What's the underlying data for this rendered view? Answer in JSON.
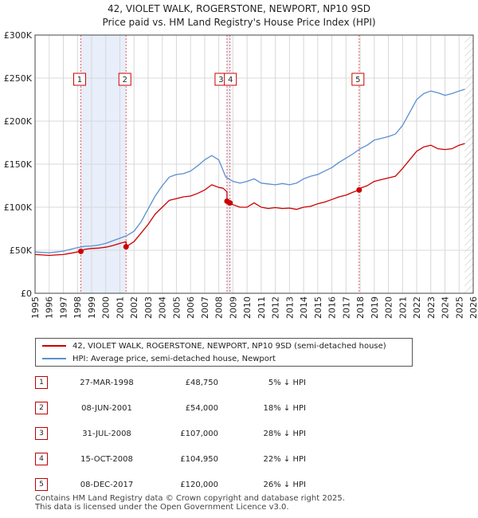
{
  "chart_data": {
    "type": "line",
    "title": "42, VIOLET WALK, ROGERSTONE, NEWPORT, NP10 9SD",
    "subtitle": "Price paid vs. HM Land Registry's House Price Index (HPI)",
    "xlim": [
      1995,
      2026
    ],
    "ylim": [
      0,
      300000
    ],
    "x_ticks": [
      1995,
      1996,
      1997,
      1998,
      1999,
      2000,
      2001,
      2002,
      2003,
      2004,
      2005,
      2006,
      2007,
      2008,
      2009,
      2010,
      2011,
      2012,
      2013,
      2014,
      2015,
      2016,
      2017,
      2018,
      2019,
      2020,
      2021,
      2022,
      2023,
      2024,
      2025,
      2026
    ],
    "y_ticks": [
      {
        "value": 0,
        "label": "£0"
      },
      {
        "value": 50000,
        "label": "£50K"
      },
      {
        "value": 100000,
        "label": "£100K"
      },
      {
        "value": 150000,
        "label": "£150K"
      },
      {
        "value": 200000,
        "label": "£200K"
      },
      {
        "value": 250000,
        "label": "£250K"
      },
      {
        "value": 300000,
        "label": "£300K"
      }
    ],
    "grid": true,
    "series": [
      {
        "name": "42, VIOLET WALK, ROGERSTONE, NEWPORT, NP10 9SD (semi-detached house)",
        "color": "#cc0000",
        "x": [
          1995.0,
          1995.5,
          1996.0,
          1996.5,
          1997.0,
          1997.5,
          1998.0,
          1998.24,
          1998.5,
          1999.0,
          1999.5,
          2000.0,
          2000.5,
          2001.0,
          2001.44,
          2001.44,
          2002.0,
          2002.5,
          2003.0,
          2003.5,
          2004.0,
          2004.5,
          2005.0,
          2005.5,
          2006.0,
          2006.5,
          2007.0,
          2007.5,
          2008.0,
          2008.3,
          2008.58,
          2008.58,
          2008.79,
          2008.79,
          2009.0,
          2009.5,
          2010.0,
          2010.5,
          2011.0,
          2011.5,
          2012.0,
          2012.5,
          2013.0,
          2013.5,
          2014.0,
          2014.5,
          2015.0,
          2015.5,
          2016.0,
          2016.5,
          2017.0,
          2017.5,
          2017.93,
          2018.0,
          2018.5,
          2019.0,
          2019.5,
          2020.0,
          2020.5,
          2021.0,
          2021.5,
          2022.0,
          2022.5,
          2023.0,
          2023.5,
          2024.0,
          2024.5,
          2025.0,
          2025.4
        ],
        "values": [
          45000,
          44500,
          44000,
          44500,
          45000,
          46500,
          48000,
          48750,
          51000,
          52000,
          52500,
          53500,
          55500,
          58000,
          60000,
          54000,
          60000,
          70000,
          80000,
          92000,
          100000,
          108000,
          110000,
          112000,
          113000,
          116000,
          120000,
          126000,
          123000,
          122000,
          118000,
          107000,
          104950,
          104950,
          103000,
          100000,
          100000,
          105000,
          100000,
          98500,
          99500,
          98500,
          99000,
          97500,
          100000,
          101000,
          104000,
          106000,
          109000,
          112000,
          114000,
          117500,
          120000,
          122000,
          125000,
          130000,
          132000,
          134000,
          136000,
          145000,
          155000,
          165000,
          170000,
          172000,
          168000,
          167000,
          168000,
          172000,
          174000
        ]
      },
      {
        "name": "HPI: Average price, semi-detached house, Newport",
        "color": "#5b8fd1",
        "x": [
          1995.0,
          1995.5,
          1996.0,
          1996.5,
          1997.0,
          1997.5,
          1998.0,
          1998.5,
          1999.0,
          1999.5,
          2000.0,
          2000.5,
          2001.0,
          2001.5,
          2002.0,
          2002.5,
          2003.0,
          2003.5,
          2004.0,
          2004.5,
          2005.0,
          2005.5,
          2006.0,
          2006.5,
          2007.0,
          2007.5,
          2008.0,
          2008.5,
          2009.0,
          2009.5,
          2010.0,
          2010.5,
          2011.0,
          2011.5,
          2012.0,
          2012.5,
          2013.0,
          2013.5,
          2014.0,
          2014.5,
          2015.0,
          2015.5,
          2016.0,
          2016.5,
          2017.0,
          2017.5,
          2018.0,
          2018.5,
          2019.0,
          2019.5,
          2020.0,
          2020.5,
          2021.0,
          2021.5,
          2022.0,
          2022.5,
          2023.0,
          2023.5,
          2024.0,
          2024.5,
          2025.0,
          2025.4
        ],
        "values": [
          48000,
          47500,
          47000,
          48000,
          49000,
          51000,
          53000,
          54500,
          55000,
          56000,
          58000,
          61000,
          64000,
          67000,
          72000,
          83000,
          98000,
          113000,
          125000,
          135000,
          138000,
          139000,
          142000,
          148000,
          155000,
          160000,
          155000,
          135000,
          130000,
          128000,
          130000,
          133000,
          128000,
          127000,
          126000,
          127500,
          126000,
          128000,
          133000,
          136000,
          138000,
          142000,
          146000,
          152000,
          157000,
          162000,
          168000,
          172000,
          178000,
          180000,
          182000,
          185000,
          195000,
          210000,
          225000,
          232000,
          235000,
          233000,
          230000,
          232000,
          235000,
          237000
        ]
      }
    ],
    "transactions": [
      {
        "num": "1",
        "year": 1998.24,
        "price": 48750,
        "date": "27-MAR-1998",
        "price_label": "£48,750",
        "hpi": "5% ↓ HPI"
      },
      {
        "num": "2",
        "year": 2001.44,
        "price": 54000,
        "date": "08-JUN-2001",
        "price_label": "£54,000",
        "hpi": "18% ↓ HPI"
      },
      {
        "num": "3",
        "year": 2008.58,
        "price": 107000,
        "date": "31-JUL-2008",
        "price_label": "£107,000",
        "hpi": "28% ↓ HPI"
      },
      {
        "num": "4",
        "year": 2008.79,
        "price": 104950,
        "date": "15-OCT-2008",
        "price_label": "£104,950",
        "hpi": "22% ↓ HPI"
      },
      {
        "num": "5",
        "year": 2017.93,
        "price": 120000,
        "date": "08-DEC-2017",
        "price_label": "£120,000",
        "hpi": "26% ↓ HPI"
      }
    ],
    "shaded_spans": [
      [
        1998.24,
        2001.44
      ],
      [
        2008.58,
        2008.79
      ]
    ],
    "future_hatch_from": 2025.4
  },
  "legend": {
    "property": "42, VIOLET WALK, ROGERSTONE, NEWPORT, NP10 9SD (semi-detached house)",
    "hpi": "HPI: Average price, semi-detached house, Newport"
  },
  "footer": {
    "line1": "Contains HM Land Registry data © Crown copyright and database right 2025.",
    "line2": "This data is licensed under the Open Government Licence v3.0."
  },
  "colors": {
    "property": "#cc0000",
    "hpi": "#5b8fd1",
    "grid": "#d8d8d8",
    "span": "#e8eefa",
    "marker_border": "#cc0000",
    "vline": "#e06060"
  }
}
